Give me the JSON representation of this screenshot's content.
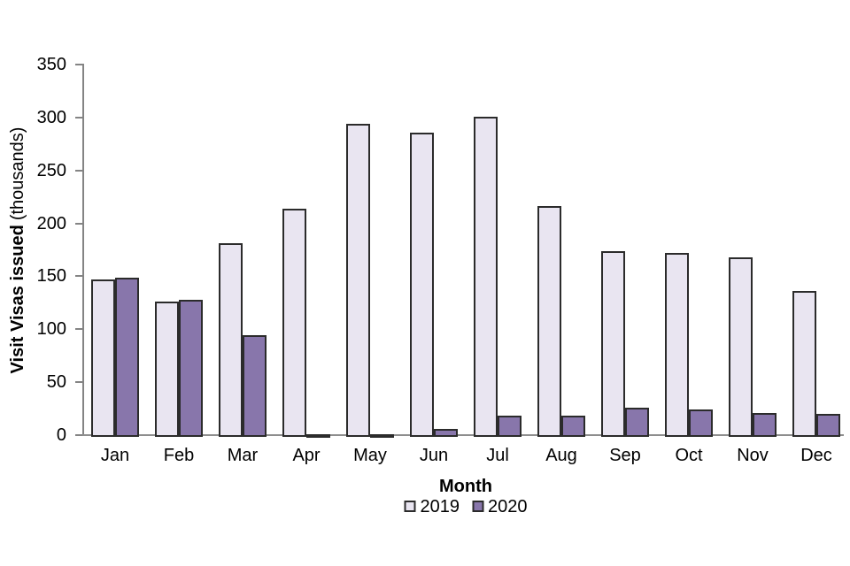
{
  "chart_data": {
    "type": "bar",
    "title": "",
    "xlabel": "Month",
    "ylabel_bold": "Visit Visas issued",
    "ylabel_normal": "(thousands)",
    "categories": [
      "Jan",
      "Feb",
      "Mar",
      "Apr",
      "May",
      "Jun",
      "Jul",
      "Aug",
      "Sep",
      "Oct",
      "Nov",
      "Dec"
    ],
    "series": [
      {
        "name": "2019",
        "color": "#e9e5f1",
        "values": [
          147,
          126,
          181,
          214,
          294,
          286,
          301,
          216,
          174,
          172,
          168,
          136
        ]
      },
      {
        "name": "2020",
        "color": "#8876ab",
        "values": [
          149,
          128,
          94,
          1,
          1,
          6,
          18,
          18,
          26,
          24,
          21,
          20
        ]
      }
    ],
    "ylim": [
      0,
      350
    ],
    "yticks": [
      0,
      50,
      100,
      150,
      200,
      250,
      300,
      350
    ],
    "grid": false,
    "legend_position": "bottom"
  },
  "colors": {
    "background": "#ffffff",
    "bar_border": "#2b2b2b",
    "axis": "#848484",
    "text": "#000000",
    "series_2019": "#e9e5f1",
    "series_2020": "#8876ab"
  }
}
